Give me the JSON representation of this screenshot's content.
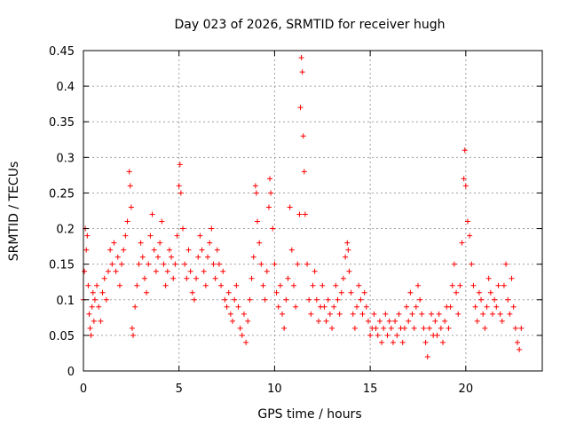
{
  "chart_data": {
    "type": "scatter",
    "title": "Day 023 of 2026, SRMTID for receiver hugh",
    "xlabel": "GPS time / hours",
    "ylabel": "SRMTID / TECUs",
    "xlim": [
      0,
      24
    ],
    "ylim": [
      0,
      0.45
    ],
    "xticks": [
      "0",
      "5",
      "10",
      "15",
      "20"
    ],
    "yticks": [
      "0",
      "0.05",
      "0.1",
      "0.15",
      "0.2",
      "0.25",
      "0.3",
      "0.35",
      "0.4",
      "0.45"
    ],
    "grid": true,
    "marker": "+",
    "color": "#ff0000",
    "series": [
      {
        "name": "SRMTID",
        "points": [
          [
            0.0,
            0.1
          ],
          [
            0.05,
            0.14
          ],
          [
            0.1,
            0.2
          ],
          [
            0.15,
            0.17
          ],
          [
            0.2,
            0.19
          ],
          [
            0.25,
            0.12
          ],
          [
            0.3,
            0.08
          ],
          [
            0.35,
            0.06
          ],
          [
            0.4,
            0.05
          ],
          [
            0.45,
            0.09
          ],
          [
            0.5,
            0.11
          ],
          [
            0.55,
            0.07
          ],
          [
            0.6,
            0.1
          ],
          [
            0.7,
            0.12
          ],
          [
            0.8,
            0.09
          ],
          [
            0.9,
            0.07
          ],
          [
            1.0,
            0.11
          ],
          [
            1.1,
            0.13
          ],
          [
            1.2,
            0.1
          ],
          [
            1.3,
            0.14
          ],
          [
            1.4,
            0.17
          ],
          [
            1.5,
            0.15
          ],
          [
            1.6,
            0.18
          ],
          [
            1.7,
            0.14
          ],
          [
            1.8,
            0.16
          ],
          [
            1.9,
            0.12
          ],
          [
            2.0,
            0.15
          ],
          [
            2.1,
            0.17
          ],
          [
            2.2,
            0.19
          ],
          [
            2.3,
            0.21
          ],
          [
            2.4,
            0.28
          ],
          [
            2.45,
            0.26
          ],
          [
            2.5,
            0.23
          ],
          [
            2.55,
            0.06
          ],
          [
            2.6,
            0.05
          ],
          [
            2.7,
            0.09
          ],
          [
            2.8,
            0.12
          ],
          [
            2.9,
            0.15
          ],
          [
            3.0,
            0.18
          ],
          [
            3.1,
            0.16
          ],
          [
            3.2,
            0.13
          ],
          [
            3.3,
            0.11
          ],
          [
            3.4,
            0.15
          ],
          [
            3.5,
            0.19
          ],
          [
            3.6,
            0.22
          ],
          [
            3.7,
            0.17
          ],
          [
            3.8,
            0.14
          ],
          [
            3.9,
            0.16
          ],
          [
            4.0,
            0.18
          ],
          [
            4.1,
            0.21
          ],
          [
            4.2,
            0.15
          ],
          [
            4.3,
            0.12
          ],
          [
            4.4,
            0.14
          ],
          [
            4.5,
            0.17
          ],
          [
            4.6,
            0.16
          ],
          [
            4.7,
            0.13
          ],
          [
            4.8,
            0.15
          ],
          [
            4.9,
            0.19
          ],
          [
            5.0,
            0.26
          ],
          [
            5.05,
            0.29
          ],
          [
            5.1,
            0.25
          ],
          [
            5.2,
            0.2
          ],
          [
            5.3,
            0.15
          ],
          [
            5.4,
            0.13
          ],
          [
            5.5,
            0.17
          ],
          [
            5.6,
            0.14
          ],
          [
            5.7,
            0.11
          ],
          [
            5.8,
            0.1
          ],
          [
            5.9,
            0.13
          ],
          [
            6.0,
            0.16
          ],
          [
            6.1,
            0.19
          ],
          [
            6.2,
            0.17
          ],
          [
            6.3,
            0.14
          ],
          [
            6.4,
            0.12
          ],
          [
            6.5,
            0.16
          ],
          [
            6.6,
            0.18
          ],
          [
            6.7,
            0.2
          ],
          [
            6.8,
            0.15
          ],
          [
            6.9,
            0.13
          ],
          [
            7.0,
            0.17
          ],
          [
            7.1,
            0.15
          ],
          [
            7.2,
            0.12
          ],
          [
            7.3,
            0.14
          ],
          [
            7.4,
            0.1
          ],
          [
            7.5,
            0.09
          ],
          [
            7.6,
            0.11
          ],
          [
            7.7,
            0.08
          ],
          [
            7.8,
            0.07
          ],
          [
            7.9,
            0.1
          ],
          [
            8.0,
            0.12
          ],
          [
            8.1,
            0.09
          ],
          [
            8.2,
            0.06
          ],
          [
            8.3,
            0.05
          ],
          [
            8.4,
            0.08
          ],
          [
            8.5,
            0.04
          ],
          [
            8.6,
            0.07
          ],
          [
            8.7,
            0.1
          ],
          [
            8.8,
            0.13
          ],
          [
            8.9,
            0.16
          ],
          [
            9.0,
            0.26
          ],
          [
            9.05,
            0.25
          ],
          [
            9.1,
            0.21
          ],
          [
            9.2,
            0.18
          ],
          [
            9.3,
            0.15
          ],
          [
            9.4,
            0.12
          ],
          [
            9.5,
            0.1
          ],
          [
            9.6,
            0.14
          ],
          [
            9.7,
            0.23
          ],
          [
            9.75,
            0.27
          ],
          [
            9.8,
            0.25
          ],
          [
            9.9,
            0.2
          ],
          [
            10.0,
            0.15
          ],
          [
            10.1,
            0.11
          ],
          [
            10.2,
            0.09
          ],
          [
            10.3,
            0.12
          ],
          [
            10.4,
            0.08
          ],
          [
            10.5,
            0.06
          ],
          [
            10.6,
            0.1
          ],
          [
            10.7,
            0.13
          ],
          [
            10.8,
            0.23
          ],
          [
            10.9,
            0.17
          ],
          [
            11.0,
            0.12
          ],
          [
            11.1,
            0.09
          ],
          [
            11.2,
            0.15
          ],
          [
            11.3,
            0.22
          ],
          [
            11.35,
            0.37
          ],
          [
            11.4,
            0.44
          ],
          [
            11.45,
            0.42
          ],
          [
            11.5,
            0.33
          ],
          [
            11.55,
            0.28
          ],
          [
            11.6,
            0.22
          ],
          [
            11.7,
            0.15
          ],
          [
            11.8,
            0.1
          ],
          [
            11.9,
            0.08
          ],
          [
            12.0,
            0.12
          ],
          [
            12.1,
            0.14
          ],
          [
            12.2,
            0.1
          ],
          [
            12.3,
            0.07
          ],
          [
            12.4,
            0.09
          ],
          [
            12.5,
            0.12
          ],
          [
            12.6,
            0.09
          ],
          [
            12.7,
            0.07
          ],
          [
            12.8,
            0.1
          ],
          [
            12.9,
            0.08
          ],
          [
            13.0,
            0.06
          ],
          [
            13.1,
            0.09
          ],
          [
            13.2,
            0.12
          ],
          [
            13.3,
            0.1
          ],
          [
            13.4,
            0.08
          ],
          [
            13.5,
            0.11
          ],
          [
            13.6,
            0.13
          ],
          [
            13.7,
            0.16
          ],
          [
            13.8,
            0.18
          ],
          [
            13.85,
            0.17
          ],
          [
            13.9,
            0.14
          ],
          [
            14.0,
            0.11
          ],
          [
            14.1,
            0.08
          ],
          [
            14.2,
            0.06
          ],
          [
            14.3,
            0.09
          ],
          [
            14.4,
            0.12
          ],
          [
            14.5,
            0.1
          ],
          [
            14.6,
            0.08
          ],
          [
            14.7,
            0.11
          ],
          [
            14.8,
            0.09
          ],
          [
            14.9,
            0.07
          ],
          [
            15.0,
            0.05
          ],
          [
            15.1,
            0.06
          ],
          [
            15.2,
            0.08
          ],
          [
            15.3,
            0.06
          ],
          [
            15.4,
            0.05
          ],
          [
            15.5,
            0.07
          ],
          [
            15.6,
            0.04
          ],
          [
            15.7,
            0.06
          ],
          [
            15.8,
            0.08
          ],
          [
            15.9,
            0.05
          ],
          [
            16.0,
            0.07
          ],
          [
            16.1,
            0.06
          ],
          [
            16.2,
            0.04
          ],
          [
            16.3,
            0.07
          ],
          [
            16.4,
            0.05
          ],
          [
            16.5,
            0.08
          ],
          [
            16.6,
            0.06
          ],
          [
            16.7,
            0.04
          ],
          [
            16.8,
            0.06
          ],
          [
            16.9,
            0.09
          ],
          [
            17.0,
            0.07
          ],
          [
            17.1,
            0.11
          ],
          [
            17.2,
            0.08
          ],
          [
            17.3,
            0.06
          ],
          [
            17.4,
            0.09
          ],
          [
            17.5,
            0.12
          ],
          [
            17.6,
            0.1
          ],
          [
            17.7,
            0.08
          ],
          [
            17.8,
            0.06
          ],
          [
            17.9,
            0.04
          ],
          [
            18.0,
            0.02
          ],
          [
            18.1,
            0.06
          ],
          [
            18.2,
            0.08
          ],
          [
            18.3,
            0.05
          ],
          [
            18.4,
            0.07
          ],
          [
            18.5,
            0.05
          ],
          [
            18.6,
            0.08
          ],
          [
            18.7,
            0.06
          ],
          [
            18.8,
            0.04
          ],
          [
            18.9,
            0.07
          ],
          [
            19.0,
            0.09
          ],
          [
            19.1,
            0.06
          ],
          [
            19.2,
            0.09
          ],
          [
            19.3,
            0.12
          ],
          [
            19.4,
            0.15
          ],
          [
            19.5,
            0.11
          ],
          [
            19.6,
            0.08
          ],
          [
            19.7,
            0.12
          ],
          [
            19.8,
            0.18
          ],
          [
            19.9,
            0.27
          ],
          [
            19.95,
            0.31
          ],
          [
            20.0,
            0.26
          ],
          [
            20.1,
            0.21
          ],
          [
            20.2,
            0.19
          ],
          [
            20.3,
            0.15
          ],
          [
            20.4,
            0.12
          ],
          [
            20.5,
            0.09
          ],
          [
            20.6,
            0.07
          ],
          [
            20.7,
            0.11
          ],
          [
            20.8,
            0.1
          ],
          [
            20.9,
            0.08
          ],
          [
            21.0,
            0.06
          ],
          [
            21.1,
            0.09
          ],
          [
            21.2,
            0.13
          ],
          [
            21.3,
            0.11
          ],
          [
            21.4,
            0.08
          ],
          [
            21.5,
            0.1
          ],
          [
            21.6,
            0.09
          ],
          [
            21.7,
            0.12
          ],
          [
            21.8,
            0.08
          ],
          [
            21.9,
            0.07
          ],
          [
            22.0,
            0.12
          ],
          [
            22.1,
            0.15
          ],
          [
            22.2,
            0.1
          ],
          [
            22.3,
            0.08
          ],
          [
            22.4,
            0.13
          ],
          [
            22.5,
            0.09
          ],
          [
            22.6,
            0.06
          ],
          [
            22.7,
            0.04
          ],
          [
            22.8,
            0.03
          ],
          [
            22.9,
            0.06
          ]
        ]
      }
    ]
  }
}
